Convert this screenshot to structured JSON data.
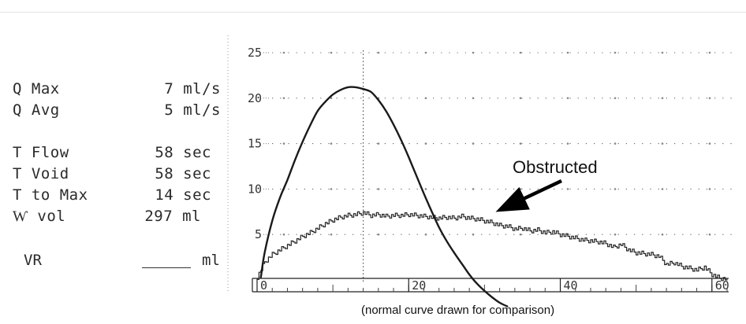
{
  "stats": {
    "q_max": {
      "label": "Q Max",
      "value": "7 ml/s"
    },
    "q_avg": {
      "label": "Q Avg",
      "value": "5 ml/s"
    },
    "t_flow": {
      "label": "T Flow",
      "value": "58 sec"
    },
    "t_void": {
      "label": "T Void",
      "value": "58 sec"
    },
    "t_to_max": {
      "label": "T to Max",
      "value": "14 sec"
    },
    "vol": {
      "label": "Ⱳ vol",
      "value": "297 ml"
    },
    "vr": {
      "label": "VR",
      "unit": "ml"
    }
  },
  "annotation": {
    "label": "Obstructed"
  },
  "caption": "(normal curve drawn for comparison)",
  "chart_data": {
    "type": "line",
    "title": "",
    "xlabel": "",
    "ylabel": "",
    "xlim": [
      0,
      62
    ],
    "ylim": [
      0,
      25
    ],
    "x_ticks": [
      {
        "value": 0,
        "label": "0"
      },
      {
        "value": 20,
        "label": "20"
      },
      {
        "value": 40,
        "label": "40"
      },
      {
        "value": 60,
        "label": "60"
      }
    ],
    "y_ticks": [
      {
        "value": 5,
        "label": "5"
      },
      {
        "value": 10,
        "label": "10"
      },
      {
        "value": 15,
        "label": "15"
      },
      {
        "value": 20,
        "label": "20"
      },
      {
        "value": 25,
        "label": "25"
      }
    ],
    "grid": true,
    "max_flow_marker_x": 14,
    "series": [
      {
        "name": "Obstructed",
        "style": "stepped",
        "x": [
          0,
          1,
          2,
          3,
          4,
          5,
          6,
          7,
          8,
          9,
          10,
          11,
          12,
          13,
          14,
          15,
          16,
          17,
          18,
          19,
          20,
          21,
          22,
          23,
          24,
          25,
          26,
          27,
          28,
          29,
          30,
          31,
          32,
          33,
          34,
          35,
          36,
          37,
          38,
          39,
          40,
          41,
          42,
          43,
          44,
          45,
          46,
          47,
          48,
          49,
          50,
          51,
          52,
          53,
          54,
          55,
          56,
          57,
          58,
          59,
          60,
          61,
          62
        ],
        "values": [
          0.3,
          2.0,
          2.8,
          3.3,
          3.8,
          4.3,
          4.8,
          5.2,
          5.7,
          6.2,
          6.6,
          6.9,
          7.1,
          7.2,
          7.4,
          7.1,
          7.2,
          7.0,
          7.1,
          7.1,
          7.2,
          7.1,
          7.0,
          6.9,
          6.8,
          6.9,
          6.8,
          7.0,
          6.8,
          6.7,
          6.5,
          6.3,
          6.0,
          5.9,
          5.6,
          5.7,
          5.4,
          5.5,
          5.2,
          5.3,
          5.0,
          4.8,
          4.6,
          4.4,
          4.3,
          4.2,
          4.0,
          3.6,
          3.9,
          3.3,
          3.0,
          2.9,
          2.8,
          2.6,
          1.7,
          1.9,
          1.5,
          1.3,
          1.1,
          1.4,
          0.6,
          0.2,
          0.1
        ]
      },
      {
        "name": "Normal (drawn for comparison)",
        "style": "smooth",
        "x": [
          0.5,
          1,
          2,
          3,
          4,
          5,
          6,
          7,
          8,
          9,
          10,
          11,
          12,
          13,
          14,
          15,
          16,
          17,
          18,
          19,
          20,
          21,
          22,
          23,
          24,
          25,
          26,
          27,
          28,
          29,
          30,
          31,
          32,
          33
        ],
        "values": [
          0.3,
          3.0,
          6.5,
          9.0,
          11.0,
          13.2,
          15.2,
          17.0,
          18.6,
          19.6,
          20.4,
          20.9,
          21.2,
          21.2,
          21.0,
          20.7,
          19.8,
          18.6,
          17.1,
          15.4,
          13.5,
          11.5,
          9.5,
          7.6,
          5.8,
          4.3,
          3.0,
          1.8,
          0.6,
          -0.4,
          -1.2,
          -1.9,
          -2.5,
          -2.9
        ]
      }
    ]
  }
}
